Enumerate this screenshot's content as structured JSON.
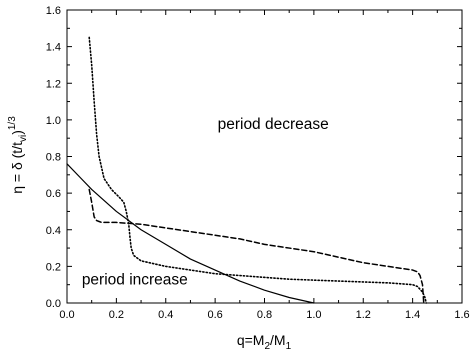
{
  "chart_data": {
    "type": "line",
    "title": "",
    "xlabel": {
      "main": "q=M",
      "sub1": "2",
      "mid": "/M",
      "sub2": "1"
    },
    "ylabel": {
      "eta": "η = δ (t/t",
      "sub": "vi",
      "close": ")",
      "sup": "1/3"
    },
    "xlim": [
      0.0,
      1.6
    ],
    "ylim": [
      0.0,
      1.6
    ],
    "xticks": [
      0.0,
      0.2,
      0.4,
      0.6,
      0.8,
      1.0,
      1.2,
      1.4,
      1.6
    ],
    "xtick_labels": [
      "0.0",
      "0.2",
      "0.4",
      "0.6",
      "0.8",
      "1.0",
      "1.2",
      "1.4",
      "1.6"
    ],
    "yticks": [
      0.0,
      0.2,
      0.4,
      0.6,
      0.8,
      1.0,
      1.2,
      1.4,
      1.6
    ],
    "ytick_labels": [
      "0.0",
      "0.2",
      "0.4",
      "0.6",
      "0.8",
      "1.0",
      "1.2",
      "1.4",
      "1.6"
    ],
    "grid": false,
    "annotations": [
      {
        "text": "period decrease",
        "x": 0.61,
        "y": 0.95
      },
      {
        "text": "period increase",
        "x": 0.06,
        "y": 0.1
      }
    ],
    "series": [
      {
        "style": "solid",
        "x": [
          0.0,
          0.05,
          0.1,
          0.15,
          0.2,
          0.25,
          0.3,
          0.4,
          0.5,
          0.6,
          0.7,
          0.8,
          0.9,
          1.0
        ],
        "y": [
          0.76,
          0.69,
          0.62,
          0.56,
          0.5,
          0.45,
          0.4,
          0.32,
          0.24,
          0.18,
          0.12,
          0.07,
          0.03,
          0.0
        ]
      },
      {
        "style": "dashed",
        "x": [
          0.09,
          0.1,
          0.11,
          0.12,
          0.13,
          0.14,
          0.2,
          0.3,
          0.4,
          0.5,
          0.6,
          0.7,
          0.8,
          0.9,
          1.0,
          1.1,
          1.2,
          1.3,
          1.4,
          1.42,
          1.43,
          1.44,
          1.445
        ],
        "y": [
          0.62,
          0.55,
          0.47,
          0.45,
          0.445,
          0.44,
          0.44,
          0.43,
          0.41,
          0.39,
          0.37,
          0.35,
          0.32,
          0.3,
          0.28,
          0.25,
          0.22,
          0.2,
          0.18,
          0.17,
          0.15,
          0.1,
          0.0
        ]
      },
      {
        "style": "dotted",
        "x": [
          0.09,
          0.1,
          0.11,
          0.12,
          0.13,
          0.15,
          0.18,
          0.21,
          0.23,
          0.24,
          0.25,
          0.255,
          0.26,
          0.27,
          0.3,
          0.4,
          0.5,
          0.6,
          0.7,
          0.8,
          0.9,
          1.0,
          1.1,
          1.2,
          1.3,
          1.4,
          1.42,
          1.44,
          1.45,
          1.455
        ],
        "y": [
          1.45,
          1.3,
          1.1,
          0.92,
          0.8,
          0.68,
          0.62,
          0.58,
          0.55,
          0.5,
          0.43,
          0.36,
          0.3,
          0.26,
          0.23,
          0.2,
          0.18,
          0.16,
          0.15,
          0.14,
          0.13,
          0.125,
          0.12,
          0.115,
          0.11,
          0.1,
          0.09,
          0.06,
          0.03,
          0.0
        ]
      }
    ]
  }
}
